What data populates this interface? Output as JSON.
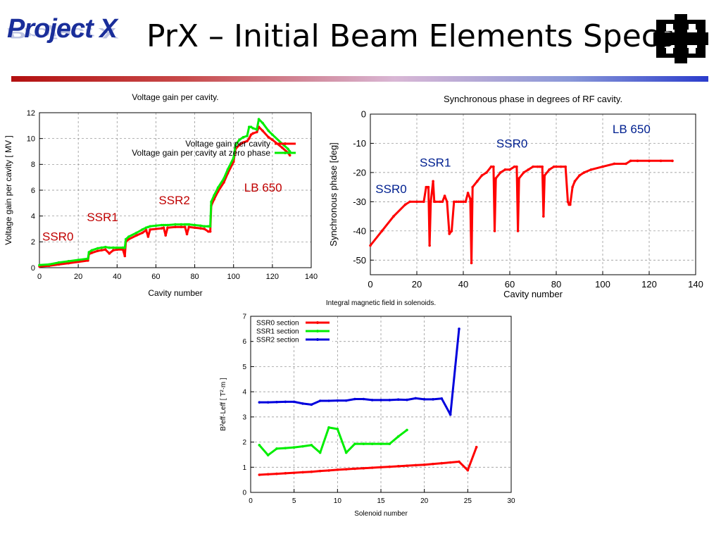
{
  "slide": {
    "logo_text": "Project X",
    "title": "PrX – Initial Beam Elements Specs"
  },
  "chart_data": [
    {
      "id": "voltage",
      "type": "line",
      "title": "Voltage gain per cavity.",
      "xlabel": "Cavity number",
      "ylabel": "Voltage gain per cavity  [ MV ]",
      "xlim": [
        0,
        140
      ],
      "ylim": [
        0,
        12
      ],
      "xticks": [
        0,
        20,
        40,
        60,
        80,
        100,
        120,
        140
      ],
      "yticks": [
        0,
        2,
        4,
        6,
        8,
        10,
        12
      ],
      "grid": true,
      "legend_position": "top-right",
      "series": [
        {
          "name": "Voltage gain per cavity",
          "color": "#ff0000",
          "x": [
            0,
            5,
            10,
            15,
            20,
            25,
            25.5,
            27,
            30,
            32,
            34,
            36,
            38,
            40,
            43,
            44,
            44.5,
            46,
            50,
            53,
            55,
            56,
            57,
            60,
            63,
            64,
            65,
            66,
            70,
            73,
            75,
            76,
            77,
            80,
            83,
            85,
            87,
            88,
            88.5,
            90,
            92,
            95,
            97,
            100,
            101,
            103,
            105,
            107,
            108,
            109,
            110,
            112,
            113,
            115,
            118,
            120,
            125,
            128,
            129
          ],
          "y": [
            0.1,
            0.15,
            0.25,
            0.35,
            0.45,
            0.55,
            1.05,
            1.15,
            1.3,
            1.35,
            1.4,
            1.1,
            1.35,
            1.4,
            1.4,
            0.9,
            2.0,
            2.2,
            2.5,
            2.7,
            2.9,
            2.4,
            2.95,
            3.0,
            3.05,
            3.1,
            2.5,
            3.1,
            3.15,
            3.15,
            3.15,
            2.6,
            3.15,
            3.1,
            3.05,
            3.0,
            2.8,
            2.8,
            4.8,
            5.3,
            5.9,
            6.6,
            7.3,
            8.2,
            9.2,
            9.5,
            9.7,
            9.8,
            10.0,
            10.3,
            10.4,
            10.5,
            10.9,
            10.6,
            10.1,
            9.9,
            9.3,
            8.9,
            8.7
          ]
        },
        {
          "name": "Voltage gain per cavity at zero phase",
          "color": "#00ee00",
          "x": [
            0,
            5,
            10,
            15,
            20,
            25,
            25.5,
            27,
            30,
            32,
            34,
            36,
            38,
            40,
            43,
            44,
            44.5,
            46,
            50,
            53,
            55,
            56,
            57,
            60,
            63,
            64,
            65,
            66,
            70,
            73,
            75,
            76,
            77,
            80,
            83,
            85,
            87,
            88,
            88.5,
            90,
            92,
            95,
            97,
            100,
            101,
            103,
            105,
            107,
            108,
            109,
            110,
            112,
            113,
            115,
            118,
            120,
            125,
            128,
            129
          ],
          "y": [
            0.2,
            0.25,
            0.4,
            0.5,
            0.6,
            0.7,
            1.2,
            1.35,
            1.5,
            1.55,
            1.6,
            1.55,
            1.55,
            1.55,
            1.55,
            1.55,
            2.2,
            2.4,
            2.7,
            2.95,
            3.1,
            3.15,
            3.2,
            3.25,
            3.3,
            3.3,
            3.3,
            3.3,
            3.35,
            3.35,
            3.35,
            3.35,
            3.35,
            3.3,
            3.25,
            3.2,
            3.2,
            3.2,
            5.1,
            5.6,
            6.2,
            6.9,
            7.6,
            8.5,
            9.5,
            9.9,
            10.1,
            10.2,
            10.9,
            10.9,
            10.8,
            10.7,
            11.5,
            11.2,
            10.6,
            10.3,
            9.6,
            9.2,
            9.0
          ]
        }
      ],
      "annotations": [
        {
          "text": "SSR0",
          "x": 0,
          "y": 2.1,
          "color": "#c00000"
        },
        {
          "text": "SSR1",
          "x": 23,
          "y": 3.6,
          "color": "#c00000"
        },
        {
          "text": "SSR2",
          "x": 60,
          "y": 4.9,
          "color": "#c00000"
        },
        {
          "text": "LB 650",
          "x": 104,
          "y": 5.9,
          "color": "#c00000"
        }
      ]
    },
    {
      "id": "phase",
      "type": "line",
      "title": "Synchronous phase in degrees of RF cavity.",
      "xlabel": "Cavity number",
      "ylabel": "Synchronous phase [deg]",
      "xlim": [
        0,
        140
      ],
      "ylim": [
        -55,
        0
      ],
      "xticks": [
        0,
        20,
        40,
        60,
        80,
        100,
        120,
        140
      ],
      "yticks": [
        0,
        -10,
        -20,
        -30,
        -40,
        -50
      ],
      "grid": true,
      "series": [
        {
          "color": "#ff0000",
          "x": [
            0,
            5,
            10,
            15,
            17,
            20,
            23,
            24,
            24.5,
            25,
            25.5,
            26,
            27,
            27.5,
            28,
            30,
            31,
            32,
            33,
            34,
            35,
            36,
            37,
            38,
            39,
            40,
            41,
            42,
            43,
            43.5,
            44,
            46,
            48,
            50,
            52,
            53,
            53.5,
            54,
            56,
            58,
            60,
            62,
            63,
            63.5,
            64,
            66,
            68,
            70,
            72,
            73,
            74,
            74.5,
            75,
            77,
            79,
            80,
            82,
            84,
            85,
            85.5,
            86,
            87,
            88,
            90,
            92,
            95,
            100,
            105,
            110,
            112,
            115,
            120,
            125,
            130
          ],
          "y": [
            -45,
            -40,
            -35,
            -31,
            -30,
            -30,
            -30,
            -25,
            -25,
            -25,
            -45,
            -30,
            -23,
            -30,
            -30,
            -30,
            -30,
            -28,
            -30,
            -41,
            -40,
            -30,
            -30,
            -30,
            -30,
            -30,
            -30,
            -27,
            -29,
            -51,
            -25,
            -23,
            -21,
            -20,
            -18,
            -18,
            -40,
            -22,
            -20,
            -19,
            -19,
            -18,
            -18,
            -40,
            -22,
            -20,
            -19,
            -18,
            -18,
            -18,
            -18,
            -35,
            -21,
            -19,
            -18,
            -18,
            -18,
            -18,
            -30,
            -31,
            -31,
            -25,
            -23,
            -21,
            -20,
            -19,
            -18,
            -17,
            -17,
            -16,
            -16,
            -16,
            -16,
            -16
          ]
        }
      ],
      "annotations": [
        {
          "text": "SSR0",
          "x": 1,
          "y": -27,
          "color": "#002090"
        },
        {
          "text": "SSR1",
          "x": 20,
          "y": -18,
          "color": "#002090"
        },
        {
          "text": "SSR0",
          "x": 53,
          "y": -11.5,
          "color": "#002090"
        },
        {
          "text": "LB 650",
          "x": 103,
          "y": -6.5,
          "color": "#002090"
        }
      ]
    },
    {
      "id": "solenoid",
      "type": "line",
      "title": "Integral magnetic field in solenoids.",
      "xlabel": "Solenoid number",
      "ylabel": "B²eff·Leff  [ T²·m ]",
      "xlim": [
        0,
        30
      ],
      "ylim": [
        0,
        7
      ],
      "xticks": [
        0,
        5,
        10,
        15,
        20,
        25,
        30
      ],
      "yticks": [
        0,
        1,
        2,
        3,
        4,
        5,
        6,
        7
      ],
      "grid": true,
      "legend_position": "top-left",
      "series": [
        {
          "name": "SSR0 section",
          "color": "#ff0000",
          "x": [
            1,
            2,
            3,
            4,
            5,
            6,
            7,
            8,
            9,
            10,
            11,
            12,
            13,
            14,
            15,
            16,
            17,
            18,
            19,
            20,
            21,
            22,
            23,
            24,
            25,
            26
          ],
          "y": [
            0.7,
            0.72,
            0.74,
            0.76,
            0.78,
            0.8,
            0.82,
            0.85,
            0.87,
            0.9,
            0.92,
            0.94,
            0.96,
            0.98,
            1.0,
            1.02,
            1.04,
            1.06,
            1.08,
            1.1,
            1.13,
            1.16,
            1.19,
            1.22,
            0.88,
            1.8
          ]
        },
        {
          "name": "SSR1 section",
          "color": "#00ee00",
          "x": [
            1,
            2,
            3,
            4,
            5,
            6,
            7,
            8,
            9,
            10,
            11,
            12,
            13,
            14,
            15,
            16,
            17,
            18
          ],
          "y": [
            1.88,
            1.48,
            1.74,
            1.76,
            1.79,
            1.83,
            1.88,
            1.58,
            2.58,
            2.52,
            1.58,
            1.93,
            1.93,
            1.93,
            1.93,
            1.93,
            2.22,
            2.48
          ]
        },
        {
          "name": "SSR2 section",
          "color": "#0000dd",
          "x": [
            1,
            2,
            3,
            4,
            5,
            6,
            7,
            8,
            9,
            10,
            11,
            12,
            13,
            14,
            15,
            16,
            17,
            18,
            19,
            20,
            21,
            22,
            23,
            24
          ],
          "y": [
            3.58,
            3.58,
            3.59,
            3.6,
            3.6,
            3.53,
            3.49,
            3.64,
            3.64,
            3.65,
            3.65,
            3.71,
            3.71,
            3.67,
            3.67,
            3.67,
            3.69,
            3.68,
            3.74,
            3.7,
            3.7,
            3.73,
            3.09,
            6.5
          ]
        }
      ]
    }
  ]
}
